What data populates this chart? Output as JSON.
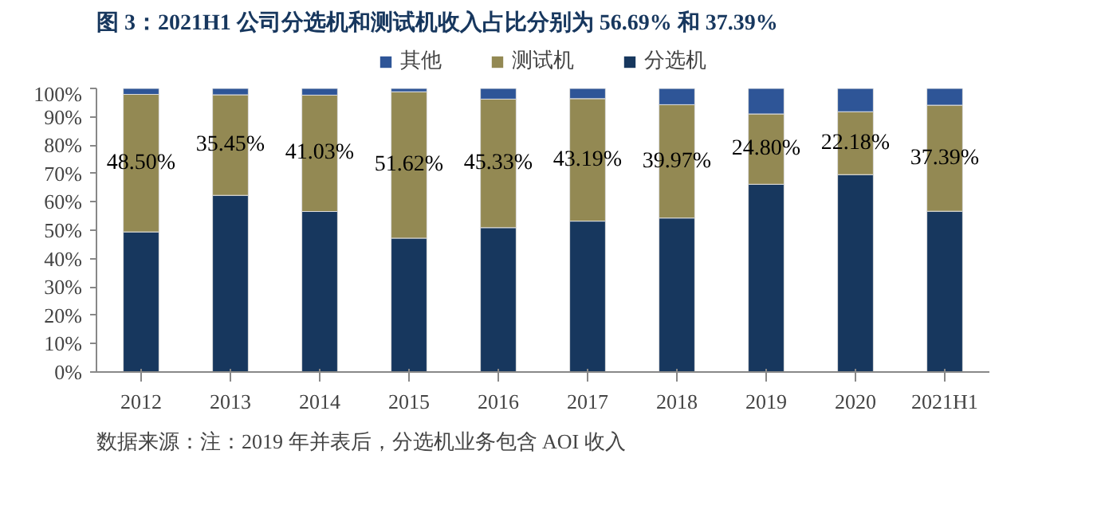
{
  "chart_data": {
    "type": "bar",
    "stacked": true,
    "title": "图 3：2021H1 公司分选机和测试机收入占比分别为 56.69% 和 37.39%",
    "categories": [
      "2012",
      "2013",
      "2014",
      "2015",
      "2016",
      "2017",
      "2018",
      "2019",
      "2020",
      "2021H1"
    ],
    "series": [
      {
        "name": "分选机",
        "color": "#17375e",
        "values": [
          49.4,
          62.3,
          56.6,
          47.2,
          50.9,
          53.2,
          54.3,
          66.2,
          69.6,
          56.69
        ]
      },
      {
        "name": "测试机",
        "color": "#938953",
        "values": [
          48.5,
          35.45,
          41.03,
          51.62,
          45.33,
          43.19,
          39.97,
          24.8,
          22.18,
          37.39
        ],
        "value_labels": [
          "48.50%",
          "35.45%",
          "41.03%",
          "51.62%",
          "45.33%",
          "43.19%",
          "39.97%",
          "24.80%",
          "22.18%",
          "37.39%"
        ]
      },
      {
        "name": "其他",
        "color": "#2e5597",
        "values": [
          2.1,
          2.25,
          2.4,
          1.2,
          3.8,
          3.6,
          5.7,
          9.0,
          8.2,
          5.92
        ]
      }
    ],
    "ylim": [
      0,
      100
    ],
    "yticks": [
      {
        "value": 0,
        "label": "0%"
      },
      {
        "value": 10,
        "label": "10%"
      },
      {
        "value": 20,
        "label": "20%"
      },
      {
        "value": 30,
        "label": "30%"
      },
      {
        "value": 40,
        "label": "40%"
      },
      {
        "value": 50,
        "label": "50%"
      },
      {
        "value": 60,
        "label": "60%"
      },
      {
        "value": 70,
        "label": "70%"
      },
      {
        "value": 80,
        "label": "80%"
      },
      {
        "value": 90,
        "label": "90%"
      },
      {
        "value": 100,
        "label": "100%"
      }
    ],
    "legend": "top",
    "grid": false,
    "annotations": [
      "数据来源：注：2019 年并表后，分选机业务包含 AOI 收入"
    ]
  }
}
